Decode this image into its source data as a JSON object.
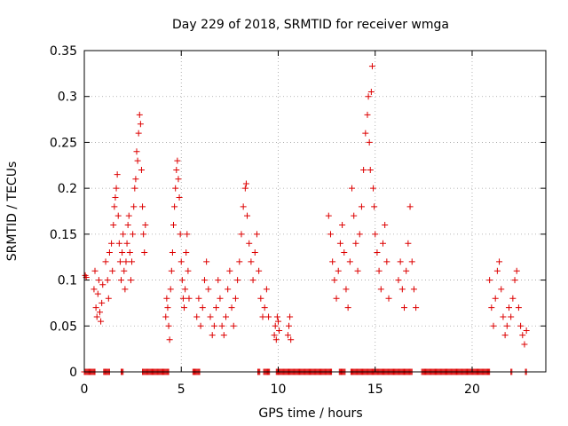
{
  "chart_data": {
    "type": "scatter",
    "title": "Day 229 of 2018, SRMTID for receiver wmga",
    "xlabel": "GPS time / hours",
    "ylabel": "SRMTID / TECUs",
    "xlim": [
      0,
      23.8
    ],
    "ylim": [
      0,
      0.35
    ],
    "xticks": [
      0,
      5,
      10,
      15,
      20
    ],
    "xtick_labels": [
      "0",
      "5",
      "10",
      "15",
      "20"
    ],
    "yticks": [
      0,
      0.05,
      0.1,
      0.15,
      0.2,
      0.25,
      0.3,
      0.35
    ],
    "ytick_labels": [
      "0",
      "0.05",
      "0.1",
      "0.15",
      "0.2",
      "0.25",
      "0.3",
      "0.35"
    ],
    "grid": true,
    "marker": "+",
    "color": "#dd0000",
    "series": [
      {
        "name": "SRMTID",
        "points": [
          [
            0.05,
            0.105
          ],
          [
            0.1,
            0.103
          ],
          [
            0.5,
            0.09
          ],
          [
            0.55,
            0.11
          ],
          [
            0.6,
            0.07
          ],
          [
            0.65,
            0.06
          ],
          [
            0.7,
            0.085
          ],
          [
            0.75,
            0.1
          ],
          [
            0.8,
            0.065
          ],
          [
            0.85,
            0.055
          ],
          [
            0.9,
            0.075
          ],
          [
            0.95,
            0.095
          ],
          [
            1.1,
            0.12
          ],
          [
            1.2,
            0.1
          ],
          [
            1.25,
            0.08
          ],
          [
            1.3,
            0.13
          ],
          [
            1.4,
            0.14
          ],
          [
            1.45,
            0.11
          ],
          [
            1.5,
            0.16
          ],
          [
            1.55,
            0.18
          ],
          [
            1.6,
            0.19
          ],
          [
            1.65,
            0.2
          ],
          [
            1.7,
            0.215
          ],
          [
            1.75,
            0.17
          ],
          [
            1.8,
            0.14
          ],
          [
            1.85,
            0.12
          ],
          [
            1.9,
            0.1
          ],
          [
            1.95,
            0.13
          ],
          [
            2.0,
            0.15
          ],
          [
            2.05,
            0.11
          ],
          [
            2.1,
            0.09
          ],
          [
            2.15,
            0.12
          ],
          [
            2.2,
            0.14
          ],
          [
            2.25,
            0.16
          ],
          [
            2.3,
            0.17
          ],
          [
            2.35,
            0.13
          ],
          [
            2.4,
            0.1
          ],
          [
            2.45,
            0.12
          ],
          [
            2.5,
            0.15
          ],
          [
            2.55,
            0.18
          ],
          [
            2.6,
            0.2
          ],
          [
            2.65,
            0.21
          ],
          [
            2.7,
            0.24
          ],
          [
            2.75,
            0.23
          ],
          [
            2.8,
            0.26
          ],
          [
            2.85,
            0.28
          ],
          [
            2.9,
            0.27
          ],
          [
            2.95,
            0.22
          ],
          [
            3.0,
            0.18
          ],
          [
            3.05,
            0.15
          ],
          [
            3.1,
            0.13
          ],
          [
            3.15,
            0.16
          ],
          [
            4.2,
            0.06
          ],
          [
            4.25,
            0.08
          ],
          [
            4.3,
            0.07
          ],
          [
            4.35,
            0.05
          ],
          [
            4.4,
            0.035
          ],
          [
            4.45,
            0.09
          ],
          [
            4.5,
            0.11
          ],
          [
            4.55,
            0.13
          ],
          [
            4.6,
            0.16
          ],
          [
            4.65,
            0.18
          ],
          [
            4.7,
            0.2
          ],
          [
            4.75,
            0.22
          ],
          [
            4.8,
            0.23
          ],
          [
            4.85,
            0.21
          ],
          [
            4.9,
            0.19
          ],
          [
            4.95,
            0.15
          ],
          [
            5.0,
            0.12
          ],
          [
            5.05,
            0.1
          ],
          [
            5.1,
            0.08
          ],
          [
            5.15,
            0.07
          ],
          [
            5.2,
            0.09
          ],
          [
            5.25,
            0.13
          ],
          [
            5.3,
            0.15
          ],
          [
            5.35,
            0.11
          ],
          [
            5.4,
            0.08
          ],
          [
            5.8,
            0.06
          ],
          [
            5.9,
            0.08
          ],
          [
            6.0,
            0.05
          ],
          [
            6.1,
            0.07
          ],
          [
            6.2,
            0.1
          ],
          [
            6.3,
            0.12
          ],
          [
            6.4,
            0.09
          ],
          [
            6.5,
            0.06
          ],
          [
            6.6,
            0.04
          ],
          [
            6.7,
            0.05
          ],
          [
            6.8,
            0.07
          ],
          [
            6.9,
            0.1
          ],
          [
            7.0,
            0.08
          ],
          [
            7.1,
            0.05
          ],
          [
            7.2,
            0.04
          ],
          [
            7.3,
            0.06
          ],
          [
            7.4,
            0.09
          ],
          [
            7.5,
            0.11
          ],
          [
            7.6,
            0.07
          ],
          [
            7.7,
            0.05
          ],
          [
            7.8,
            0.08
          ],
          [
            7.9,
            0.1
          ],
          [
            8.0,
            0.12
          ],
          [
            8.1,
            0.15
          ],
          [
            8.2,
            0.18
          ],
          [
            8.3,
            0.2
          ],
          [
            8.35,
            0.205
          ],
          [
            8.4,
            0.17
          ],
          [
            8.5,
            0.14
          ],
          [
            8.6,
            0.12
          ],
          [
            8.7,
            0.1
          ],
          [
            8.8,
            0.13
          ],
          [
            8.9,
            0.15
          ],
          [
            9.0,
            0.11
          ],
          [
            9.1,
            0.08
          ],
          [
            9.2,
            0.06
          ],
          [
            9.3,
            0.07
          ],
          [
            9.4,
            0.09
          ],
          [
            9.5,
            0.06
          ],
          [
            9.8,
            0.04
          ],
          [
            9.85,
            0.05
          ],
          [
            9.9,
            0.035
          ],
          [
            9.95,
            0.06
          ],
          [
            10.0,
            0.055
          ],
          [
            10.05,
            0.045
          ],
          [
            10.5,
            0.04
          ],
          [
            10.55,
            0.05
          ],
          [
            10.6,
            0.06
          ],
          [
            10.65,
            0.035
          ],
          [
            12.6,
            0.17
          ],
          [
            12.7,
            0.15
          ],
          [
            12.8,
            0.12
          ],
          [
            12.9,
            0.1
          ],
          [
            13.0,
            0.08
          ],
          [
            13.1,
            0.11
          ],
          [
            13.2,
            0.14
          ],
          [
            13.3,
            0.16
          ],
          [
            13.4,
            0.13
          ],
          [
            13.5,
            0.09
          ],
          [
            13.6,
            0.07
          ],
          [
            13.7,
            0.12
          ],
          [
            13.8,
            0.2
          ],
          [
            13.9,
            0.17
          ],
          [
            14.0,
            0.14
          ],
          [
            14.1,
            0.11
          ],
          [
            14.2,
            0.15
          ],
          [
            14.3,
            0.18
          ],
          [
            14.4,
            0.22
          ],
          [
            14.5,
            0.26
          ],
          [
            14.6,
            0.28
          ],
          [
            14.65,
            0.3
          ],
          [
            14.7,
            0.25
          ],
          [
            14.75,
            0.22
          ],
          [
            14.8,
            0.305
          ],
          [
            14.85,
            0.333
          ],
          [
            14.9,
            0.2
          ],
          [
            14.95,
            0.18
          ],
          [
            15.0,
            0.15
          ],
          [
            15.1,
            0.13
          ],
          [
            15.2,
            0.11
          ],
          [
            15.3,
            0.09
          ],
          [
            15.4,
            0.14
          ],
          [
            15.5,
            0.16
          ],
          [
            15.6,
            0.12
          ],
          [
            15.7,
            0.08
          ],
          [
            16.2,
            0.1
          ],
          [
            16.3,
            0.12
          ],
          [
            16.4,
            0.09
          ],
          [
            16.5,
            0.07
          ],
          [
            16.6,
            0.11
          ],
          [
            16.7,
            0.14
          ],
          [
            16.8,
            0.18
          ],
          [
            16.9,
            0.12
          ],
          [
            17.0,
            0.09
          ],
          [
            17.1,
            0.07
          ],
          [
            20.9,
            0.1
          ],
          [
            21.0,
            0.07
          ],
          [
            21.1,
            0.05
          ],
          [
            21.2,
            0.08
          ],
          [
            21.3,
            0.11
          ],
          [
            21.4,
            0.12
          ],
          [
            21.5,
            0.09
          ],
          [
            21.6,
            0.06
          ],
          [
            21.7,
            0.04
          ],
          [
            21.8,
            0.05
          ],
          [
            21.9,
            0.07
          ],
          [
            22.0,
            0.06
          ],
          [
            22.1,
            0.08
          ],
          [
            22.2,
            0.1
          ],
          [
            22.3,
            0.11
          ],
          [
            22.4,
            0.07
          ],
          [
            22.5,
            0.05
          ],
          [
            22.6,
            0.04
          ],
          [
            22.7,
            0.03
          ],
          [
            22.8,
            0.045
          ]
        ],
        "zero_ranges": [
          [
            0.0,
            0.55
          ],
          [
            1.0,
            1.3
          ],
          [
            1.9,
            2.0
          ],
          [
            3.0,
            4.35
          ],
          [
            5.6,
            5.95
          ],
          [
            8.95,
            9.05
          ],
          [
            9.25,
            9.55
          ],
          [
            9.9,
            12.75
          ],
          [
            13.15,
            13.45
          ],
          [
            13.75,
            16.9
          ],
          [
            17.4,
            20.9
          ],
          [
            22.0,
            22.05
          ],
          [
            22.75,
            22.8
          ]
        ]
      }
    ]
  }
}
